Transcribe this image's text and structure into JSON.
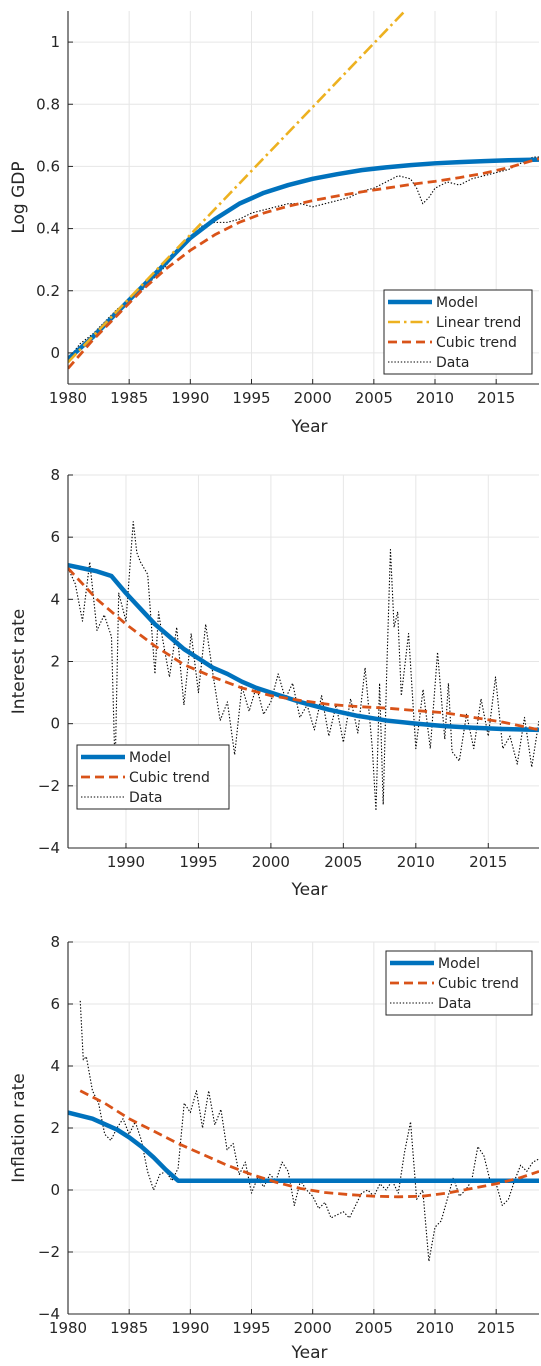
{
  "colors": {
    "model": "#0072BD",
    "linear_trend": "#EDB120",
    "cubic_trend": "#D95319",
    "data": "#000000",
    "grid": "#E6E6E6",
    "axis": "#262626"
  },
  "chart_data": [
    {
      "type": "line",
      "xlabel": "Year",
      "ylabel": "Log GDP",
      "xlim": [
        1980,
        2018.5
      ],
      "ylim": [
        -0.1,
        1.1
      ],
      "xticks": [
        1980,
        1985,
        1990,
        1995,
        2000,
        2005,
        2010,
        2015
      ],
      "yticks": [
        0,
        0.2,
        0.4,
        0.6,
        0.8,
        1
      ],
      "ytick_labels": [
        "0",
        "0.2",
        "0.4",
        "0.6",
        "0.8",
        "1"
      ],
      "grid": true,
      "legend_position": "bottom-right",
      "series": [
        {
          "name": "Model",
          "style": "solid-thick",
          "color": "model",
          "x": [
            1980,
            1982,
            1984,
            1986,
            1988,
            1990,
            1992,
            1994,
            1996,
            1998,
            2000,
            2002,
            2004,
            2006,
            2008,
            2010,
            2012,
            2014,
            2016,
            2018.5
          ],
          "y": [
            -0.02,
            0.05,
            0.13,
            0.21,
            0.29,
            0.37,
            0.43,
            0.48,
            0.515,
            0.54,
            0.56,
            0.575,
            0.588,
            0.597,
            0.604,
            0.61,
            0.614,
            0.617,
            0.62,
            0.622
          ]
        },
        {
          "name": "Linear trend",
          "style": "dashdot",
          "color": "linear_trend",
          "x": [
            1980,
            2018.5
          ],
          "y": [
            -0.03,
            1.55
          ]
        },
        {
          "name": "Cubic trend",
          "style": "dashed",
          "color": "cubic_trend",
          "x": [
            1980,
            1982,
            1984,
            1986,
            1988,
            1990,
            1992,
            1994,
            1996,
            1998,
            2000,
            2002,
            2004,
            2006,
            2008,
            2010,
            2012,
            2014,
            2016,
            2018.5
          ],
          "y": [
            -0.05,
            0.04,
            0.12,
            0.2,
            0.27,
            0.33,
            0.38,
            0.42,
            0.45,
            0.472,
            0.49,
            0.505,
            0.518,
            0.53,
            0.542,
            0.552,
            0.564,
            0.578,
            0.596,
            0.625
          ]
        },
        {
          "name": "Data",
          "style": "dotted",
          "color": "data",
          "x": [
            1980,
            1981,
            1982,
            1983,
            1984,
            1985,
            1986,
            1987,
            1988,
            1989,
            1990,
            1991,
            1992,
            1993,
            1994,
            1995,
            1996,
            1997,
            1998,
            1999,
            2000,
            2001,
            2002,
            2003,
            2004,
            2005,
            2006,
            2007,
            2008,
            2008.5,
            2009,
            2009.5,
            2010,
            2011,
            2012,
            2013,
            2014,
            2015,
            2016,
            2017,
            2018,
            2018.5
          ],
          "y": [
            -0.02,
            0.03,
            0.06,
            0.1,
            0.14,
            0.17,
            0.2,
            0.24,
            0.28,
            0.33,
            0.37,
            0.41,
            0.42,
            0.42,
            0.43,
            0.45,
            0.46,
            0.47,
            0.48,
            0.48,
            0.47,
            0.48,
            0.49,
            0.5,
            0.52,
            0.53,
            0.55,
            0.57,
            0.56,
            0.53,
            0.48,
            0.5,
            0.53,
            0.55,
            0.54,
            0.56,
            0.57,
            0.58,
            0.59,
            0.61,
            0.63,
            0.63
          ]
        }
      ]
    },
    {
      "type": "line",
      "xlabel": "Year",
      "ylabel": "Interest rate",
      "xlim": [
        1986,
        2018.5
      ],
      "ylim": [
        -4,
        8
      ],
      "xticks": [
        1990,
        1995,
        2000,
        2005,
        2010,
        2015
      ],
      "yticks": [
        -4,
        -2,
        0,
        2,
        4,
        6,
        8
      ],
      "ytick_labels": [
        "−4",
        "−2",
        "0",
        "2",
        "4",
        "6",
        "8"
      ],
      "grid": true,
      "legend_position": "bottom-left",
      "series": [
        {
          "name": "Model",
          "style": "solid-thick",
          "color": "model",
          "x": [
            1986,
            1987,
            1988,
            1989,
            1990,
            1991,
            1992,
            1993,
            1994,
            1995,
            1996,
            1997,
            1998,
            1999,
            2000,
            2002,
            2004,
            2006,
            2008,
            2010,
            2012,
            2014,
            2016,
            2018.5
          ],
          "y": [
            5.1,
            5.0,
            4.9,
            4.75,
            4.2,
            3.7,
            3.2,
            2.8,
            2.4,
            2.1,
            1.8,
            1.6,
            1.35,
            1.15,
            1.0,
            0.7,
            0.45,
            0.25,
            0.1,
            0.0,
            -0.08,
            -0.13,
            -0.17,
            -0.2
          ]
        },
        {
          "name": "Cubic trend",
          "style": "dashed",
          "color": "cubic_trend",
          "x": [
            1986,
            1988,
            1990,
            1992,
            1994,
            1996,
            1998,
            2000,
            2002,
            2004,
            2006,
            2008,
            2010,
            2012,
            2014,
            2016,
            2018.5
          ],
          "y": [
            5.0,
            4.0,
            3.2,
            2.5,
            1.9,
            1.5,
            1.15,
            0.9,
            0.75,
            0.62,
            0.55,
            0.5,
            0.42,
            0.35,
            0.2,
            0.05,
            -0.2
          ]
        },
        {
          "name": "Data",
          "style": "dotted",
          "color": "data",
          "x": [
            1986,
            1986.5,
            1987,
            1987.5,
            1988,
            1988.5,
            1989,
            1989.25,
            1989.5,
            1990,
            1990.5,
            1990.75,
            1991,
            1991.5,
            1992,
            1992.25,
            1992.5,
            1993,
            1993.5,
            1994,
            1994.5,
            1995,
            1995.5,
            1996,
            1996.5,
            1997,
            1997.5,
            1998,
            1998.5,
            1999,
            1999.5,
            2000,
            2000.5,
            2001,
            2001.5,
            2002,
            2002.5,
            2003,
            2003.5,
            2004,
            2004.5,
            2005,
            2005.5,
            2006,
            2006.5,
            2007,
            2007.25,
            2007.5,
            2007.75,
            2008,
            2008.25,
            2008.5,
            2008.75,
            2009,
            2009.5,
            2010,
            2010.5,
            2011,
            2011.5,
            2012,
            2012.25,
            2012.5,
            2013,
            2013.5,
            2014,
            2014.5,
            2015,
            2015.5,
            2016,
            2016.5,
            2017,
            2017.5,
            2018,
            2018.5
          ],
          "y": [
            5.0,
            4.5,
            3.3,
            5.2,
            3.0,
            3.5,
            2.8,
            -1.5,
            4.2,
            3.3,
            6.5,
            5.5,
            5.2,
            4.8,
            1.6,
            3.6,
            2.8,
            1.5,
            3.1,
            0.6,
            2.9,
            1.0,
            3.2,
            1.6,
            0.1,
            0.7,
            -1.0,
            1.2,
            0.4,
            1.2,
            0.3,
            0.7,
            1.6,
            0.8,
            1.3,
            0.2,
            0.6,
            -0.2,
            0.9,
            -0.4,
            0.6,
            -0.6,
            0.8,
            -0.3,
            1.8,
            -0.8,
            -2.8,
            1.3,
            -2.6,
            1.8,
            5.6,
            3.1,
            3.6,
            0.9,
            2.9,
            -0.8,
            1.1,
            -0.8,
            2.3,
            -0.5,
            1.3,
            -0.9,
            -1.2,
            0.3,
            -0.8,
            0.8,
            -0.4,
            1.5,
            -0.8,
            -0.4,
            -1.3,
            0.2,
            -1.4,
            0.1
          ]
        }
      ]
    },
    {
      "type": "line",
      "xlabel": "Year",
      "ylabel": "Inflation rate",
      "xlim": [
        1980,
        2018.5
      ],
      "ylim": [
        -4,
        8
      ],
      "xticks": [
        1980,
        1985,
        1990,
        1995,
        2000,
        2005,
        2010,
        2015
      ],
      "yticks": [
        -4,
        -2,
        0,
        2,
        4,
        6,
        8
      ],
      "ytick_labels": [
        "−4",
        "−2",
        "0",
        "2",
        "4",
        "6",
        "8"
      ],
      "grid": true,
      "legend_position": "top-right",
      "series": [
        {
          "name": "Model",
          "style": "solid-thick",
          "color": "model",
          "x": [
            1980,
            1982,
            1984,
            1985,
            1986,
            1987,
            1988,
            1989,
            2018.5
          ],
          "y": [
            2.5,
            2.3,
            1.95,
            1.7,
            1.4,
            1.05,
            0.65,
            0.3,
            0.3
          ]
        },
        {
          "name": "Cubic trend",
          "style": "dashed",
          "color": "cubic_trend",
          "x": [
            1981,
            1983,
            1985,
            1987,
            1989,
            1991,
            1993,
            1995,
            1997,
            1999,
            2001,
            2003,
            2005,
            2007,
            2009,
            2011,
            2013,
            2015,
            2017,
            2018.5
          ],
          "y": [
            3.2,
            2.8,
            2.3,
            1.9,
            1.5,
            1.15,
            0.8,
            0.5,
            0.25,
            0.05,
            -0.08,
            -0.15,
            -0.2,
            -0.22,
            -0.2,
            -0.1,
            0.05,
            0.2,
            0.4,
            0.6
          ]
        },
        {
          "name": "Data",
          "style": "dotted",
          "color": "data",
          "x": [
            1981,
            1981.25,
            1981.5,
            1982,
            1982.5,
            1983,
            1983.5,
            1984,
            1984.5,
            1985,
            1985.5,
            1986,
            1986.5,
            1987,
            1987.5,
            1988,
            1988.5,
            1989,
            1989.5,
            1990,
            1990.5,
            1991,
            1991.5,
            1992,
            1992.5,
            1993,
            1993.5,
            1994,
            1994.5,
            1995,
            1995.5,
            1996,
            1996.5,
            1997,
            1997.5,
            1998,
            1998.5,
            1999,
            1999.5,
            2000,
            2000.5,
            2001,
            2001.5,
            2002,
            2002.5,
            2003,
            2003.5,
            2004,
            2004.5,
            2005,
            2005.5,
            2006,
            2006.5,
            2007,
            2007.5,
            2008,
            2008.5,
            2009,
            2009.5,
            2010,
            2010.5,
            2011,
            2011.5,
            2012,
            2012.5,
            2013,
            2013.5,
            2014,
            2014.5,
            2015,
            2015.5,
            2016,
            2016.5,
            2017,
            2017.5,
            2018,
            2018.5
          ],
          "y": [
            6.1,
            4.2,
            4.3,
            3.2,
            2.8,
            1.8,
            1.6,
            2.0,
            2.3,
            1.8,
            2.2,
            1.6,
            0.6,
            0.0,
            0.5,
            0.6,
            0.3,
            0.7,
            2.8,
            2.5,
            3.2,
            2.0,
            3.2,
            2.1,
            2.6,
            1.3,
            1.5,
            0.5,
            0.9,
            -0.1,
            0.4,
            0.1,
            0.5,
            0.3,
            0.9,
            0.6,
            -0.5,
            0.3,
            0.0,
            -0.2,
            -0.6,
            -0.4,
            -0.9,
            -0.8,
            -0.7,
            -0.9,
            -0.5,
            -0.1,
            0.0,
            -0.2,
            0.2,
            0.0,
            0.3,
            -0.1,
            1.2,
            2.2,
            -0.3,
            0.0,
            -2.3,
            -1.2,
            -1.0,
            -0.3,
            0.4,
            -0.2,
            0.0,
            0.3,
            1.4,
            1.1,
            0.3,
            0.2,
            -0.5,
            -0.3,
            0.3,
            0.8,
            0.6,
            0.9,
            1.0
          ]
        }
      ]
    }
  ]
}
